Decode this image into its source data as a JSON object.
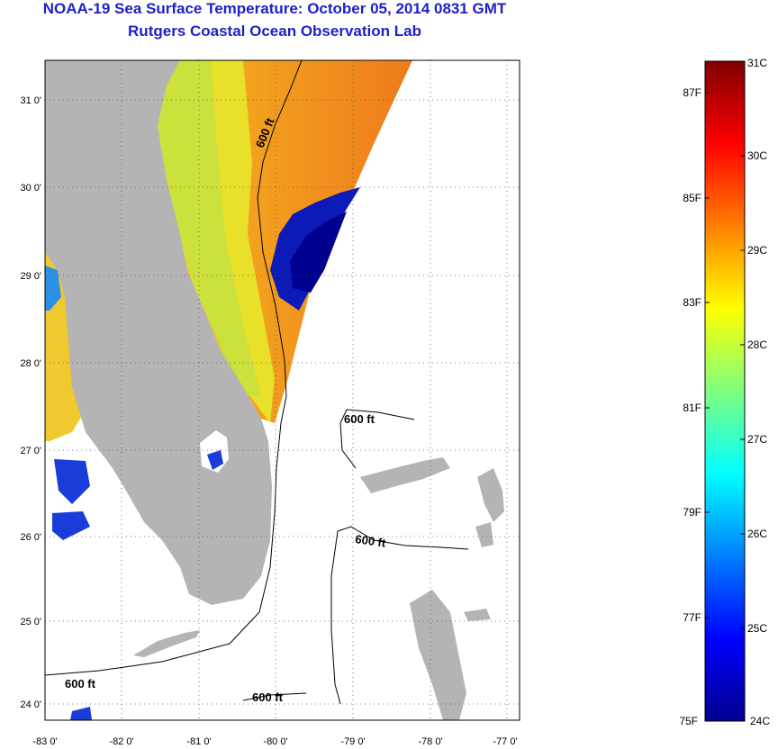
{
  "header": {
    "title": "NOAA-19 Sea Surface Temperature:  October 05, 2014 0831 GMT",
    "subtitle": "Rutgers Coastal Ocean Observation Lab"
  },
  "map": {
    "lat_labels": [
      "31 0'",
      "30 0'",
      "29 0'",
      "28 0'",
      "27 0'",
      "26 0'",
      "25 0'",
      "24 0'"
    ],
    "lon_labels": [
      "-83 0'",
      "-82 0'",
      "-81 0'",
      "-80 0'",
      "-79 0'",
      "-78 0'",
      "-77 0'"
    ],
    "contour_labels": [
      "600 ft",
      "600 ft",
      "600 ft",
      "600 ft",
      "600 ft"
    ],
    "colors": {
      "land": "#b4b4b4",
      "ocean_no_data": "#ffffff",
      "grid": "#000000"
    }
  },
  "colorbar": {
    "celsius_labels": [
      "31C",
      "30C",
      "29C",
      "28C",
      "27C",
      "26C",
      "25C",
      "24C"
    ],
    "fahrenheit_labels": [
      "87F",
      "85F",
      "83F",
      "81F",
      "79F",
      "77F",
      "75F"
    ],
    "range_c": [
      24,
      31
    ]
  }
}
